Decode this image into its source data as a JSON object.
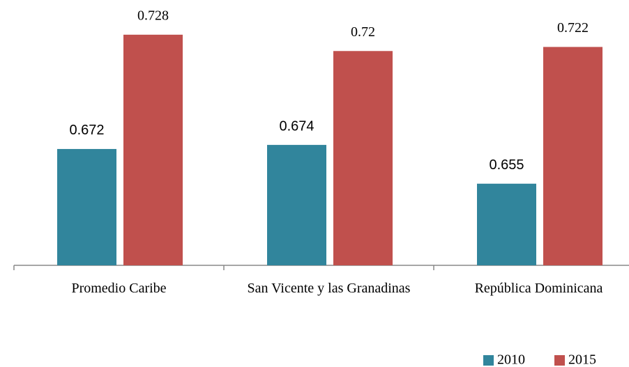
{
  "chart_data": {
    "type": "bar",
    "categories": [
      "Promedio Caribe",
      "San Vicente y las Granadinas",
      "República Dominicana"
    ],
    "series": [
      {
        "name": "2010",
        "color": "#31859c",
        "values": [
          0.672,
          0.674,
          0.655
        ]
      },
      {
        "name": "2015",
        "color": "#c0504d",
        "values": [
          0.728,
          0.72,
          0.722
        ]
      }
    ],
    "ylim": [
      0.615,
      0.745
    ],
    "legend": "bottom-right"
  }
}
